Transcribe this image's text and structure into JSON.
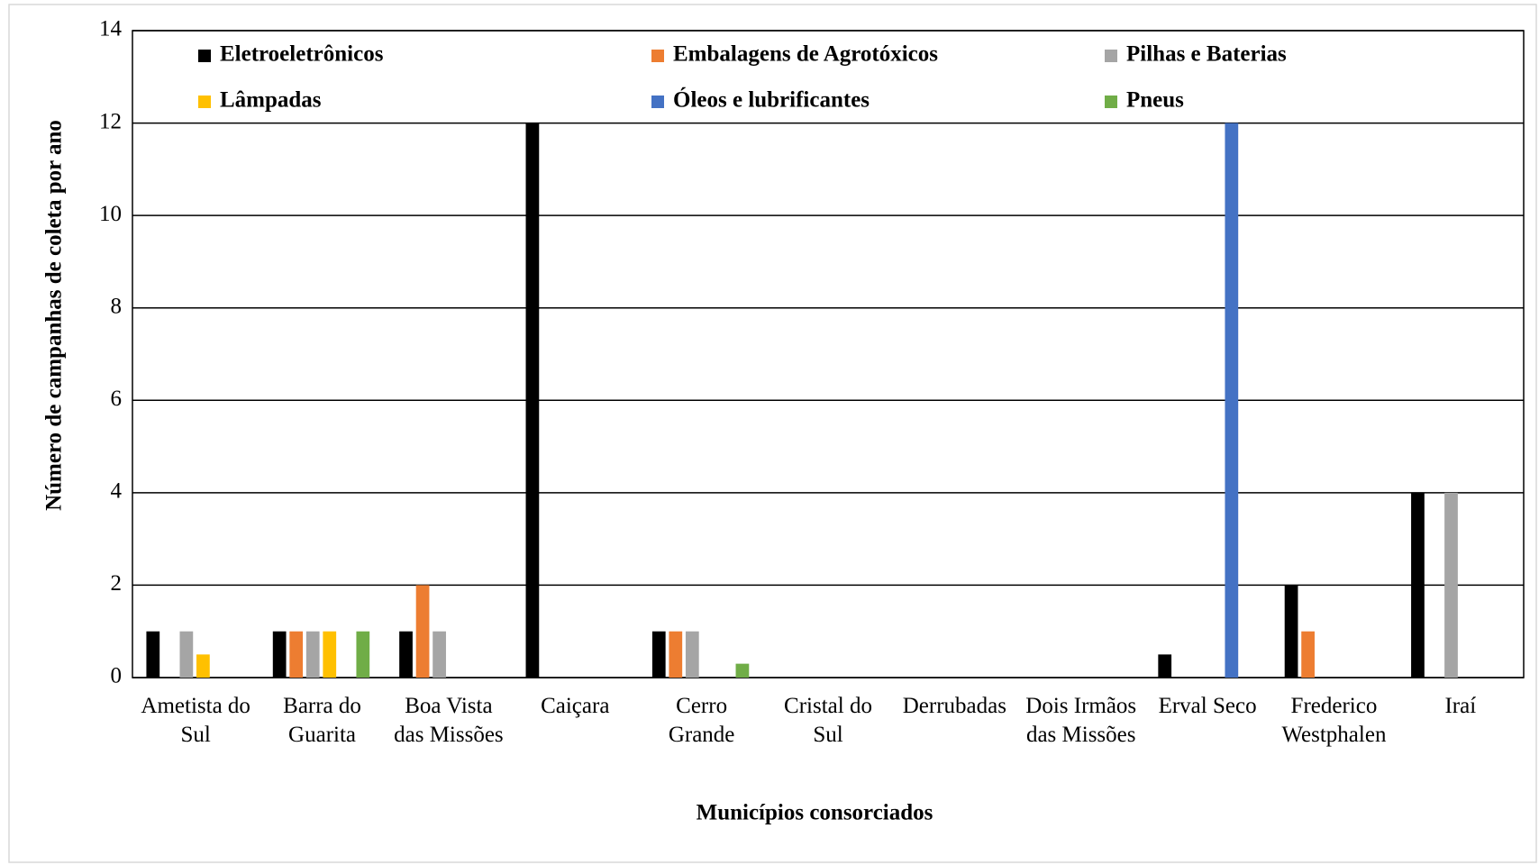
{
  "chart_data": {
    "type": "bar",
    "x_label": "Municípios consorciados",
    "y_label": "Número de campanhas  de coleta por ano",
    "categories": [
      "Ametista do Sul",
      "Barra do Guarita",
      "Boa Vista das Missões",
      "Caiçara",
      "Cerro Grande",
      "Cristal do Sul",
      "Derrubadas",
      "Dois Irmãos das Missões",
      "Erval Seco",
      "Frederico Westphalen",
      "Iraí"
    ],
    "series": [
      {
        "name": "Eletroeletrônicos",
        "color": "#000000",
        "values": [
          1,
          1,
          1,
          12,
          1,
          0,
          0,
          0,
          0.5,
          2,
          4
        ]
      },
      {
        "name": "Embalagens de Agrotóxicos",
        "color": "#ed7d31",
        "values": [
          0,
          1,
          2,
          0,
          1,
          0,
          0,
          0,
          0,
          1,
          0
        ]
      },
      {
        "name": "Pilhas e Baterias",
        "color": "#a5a5a5",
        "values": [
          1,
          1,
          1,
          0,
          1,
          0,
          0,
          0,
          0,
          0,
          4
        ]
      },
      {
        "name": "Lâmpadas",
        "color": "#ffc000",
        "values": [
          0.5,
          1,
          0,
          0,
          0,
          0,
          0,
          0,
          0,
          0,
          0
        ]
      },
      {
        "name": "Óleos e lubrificantes",
        "color": "#4472c4",
        "values": [
          0,
          0,
          0,
          0,
          0,
          0,
          0,
          0,
          12,
          0,
          0
        ]
      },
      {
        "name": "Pneus",
        "color": "#70ad47",
        "values": [
          0,
          1,
          0,
          0,
          0.3,
          0,
          0,
          0,
          0,
          0,
          0
        ]
      }
    ],
    "ylim": [
      0,
      14
    ],
    "yticks": [
      0,
      2,
      4,
      6,
      8,
      10,
      12,
      14
    ],
    "grid": true,
    "legend": "top"
  }
}
